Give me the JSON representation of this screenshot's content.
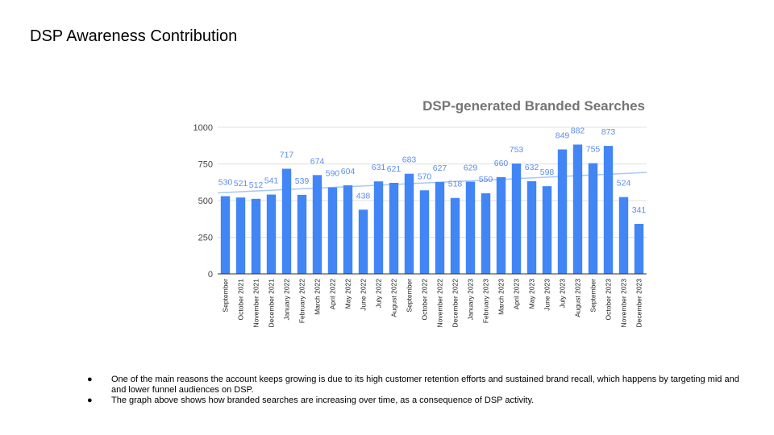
{
  "slide": {
    "title": "DSP Awareness Contribution",
    "bullets": [
      "One of the main reasons the account keeps growing is due to its high customer retention efforts and sustained brand recall, which happens by targeting mid and and lower funnel audiences on DSP.",
      "The graph above shows how branded searches are increasing over time, as a consequence of DSP activity."
    ],
    "bullet_symbol": "●"
  },
  "chart_data": {
    "type": "bar",
    "title": "DSP-generated Branded Searches",
    "xlabel": "",
    "ylabel": "",
    "ylim": [
      0,
      1000
    ],
    "yticks": [
      0,
      250,
      500,
      750,
      1000
    ],
    "grid": true,
    "legend": "none",
    "categories": [
      "September",
      "October 2021",
      "November 2021",
      "December 2021",
      "January 2022",
      "February 2022",
      "March 2022",
      "April 2022",
      "May 2022",
      "June 2022",
      "July 2022",
      "August 2022",
      "September",
      "October 2022",
      "November 2022",
      "December 2022",
      "January 2023",
      "February 2023",
      "March 2023",
      "April 2023",
      "May 2023",
      "June 2023",
      "July 2023",
      "August 2023",
      "September",
      "October 2023",
      "November 2023",
      "December 2023"
    ],
    "values": [
      530,
      521,
      512,
      541,
      717,
      539,
      674,
      590,
      604,
      438,
      631,
      621,
      683,
      570,
      627,
      518,
      629,
      550,
      660,
      753,
      632,
      598,
      849,
      882,
      755,
      873,
      524,
      341
    ],
    "trendline": {
      "type": "linear",
      "start_value": 553,
      "end_value": 692
    },
    "colors": {
      "bar": "#4285f4",
      "label": "#5b8def",
      "trendline": "#a8c7fa",
      "title": "#757575",
      "grid": "#e0e0e0"
    }
  }
}
